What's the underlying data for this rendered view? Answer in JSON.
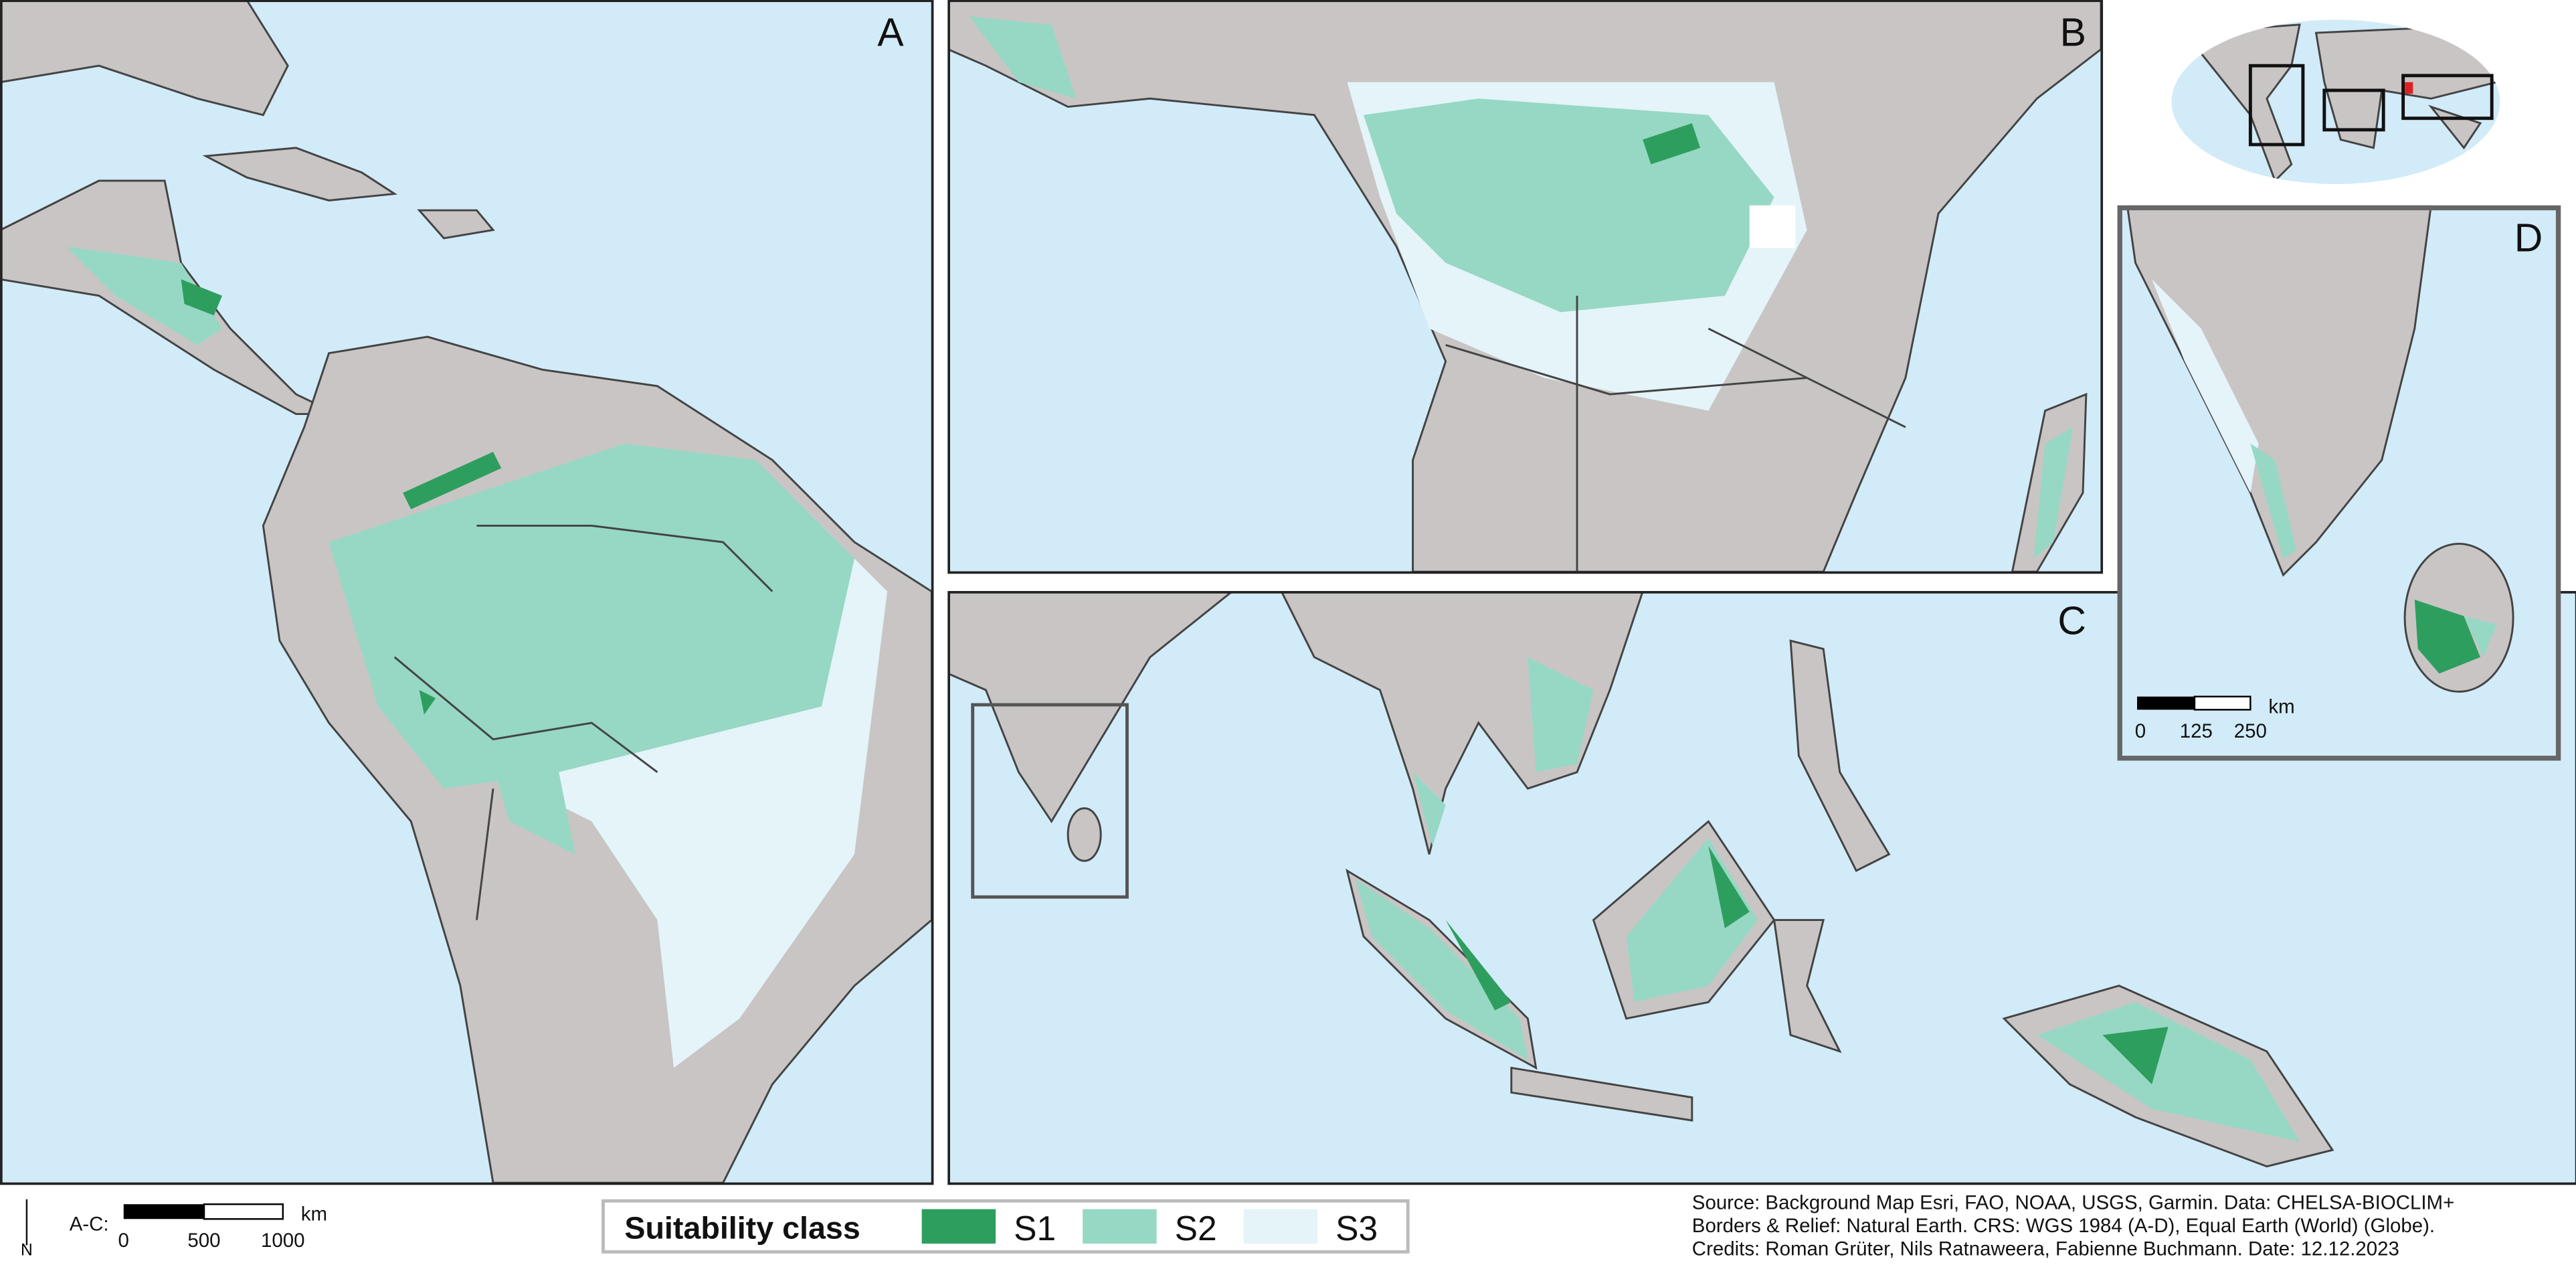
{
  "panels": {
    "a": "A",
    "b": "B",
    "c": "C",
    "d": "D"
  },
  "legend": {
    "title": "Suitability class",
    "classes": [
      {
        "name": "S1",
        "color": "#2e9e5e"
      },
      {
        "name": "S2",
        "color": "#96d8c4"
      },
      {
        "name": "S3",
        "color": "#e4f4f8"
      }
    ]
  },
  "scale_main": {
    "label": "A-C:",
    "ticks": [
      0,
      500,
      1000
    ],
    "unit": "km"
  },
  "scale_d": {
    "ticks": [
      0,
      125,
      250
    ],
    "unit": "km"
  },
  "north": "N",
  "source": [
    "Source: Background Map Esri, FAO, NOAA, USGS, Garmin. Data: CHELSA-BIOCLIM+",
    "Borders & Relief: Natural Earth. CRS: WGS 1984 (A-D), Equal Earth (World) (Globe).",
    "Credits: Roman Grüter, Nils Ratnaweera, Fabienne Buchmann. Date: 12.12.2023"
  ]
}
